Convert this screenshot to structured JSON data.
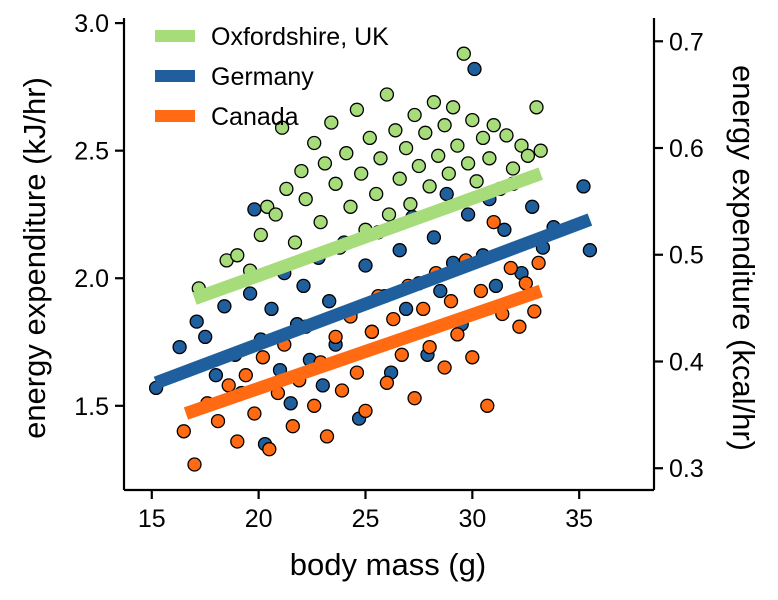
{
  "chart_data": {
    "type": "scatter",
    "xlabel": "body mass (g)",
    "ylabel": "energy expenditure (kJ/hr)",
    "ylabel_right": "energy expenditure (kcal/hr)",
    "xlim": [
      13.7,
      38.5
    ],
    "ylim": [
      1.17,
      3.02
    ],
    "ylim_right": [
      0.2796,
      0.7218
    ],
    "xticks": [
      15,
      20,
      25,
      30,
      35
    ],
    "yticks": [
      1.5,
      2.0,
      2.5,
      3.0
    ],
    "yticks_right": [
      0.3,
      0.4,
      0.5,
      0.6,
      0.7
    ],
    "xtick_labels": [
      "15",
      "20",
      "25",
      "30",
      "35"
    ],
    "ytick_labels": [
      "1.5",
      "2.0",
      "2.5",
      "3.0"
    ],
    "ytick_labels_right": [
      "0.3",
      "0.4",
      "0.5",
      "0.6",
      "0.7"
    ],
    "grid": false,
    "legend_position": "top-left",
    "draw_order": [
      "Germany",
      "Canada",
      "Oxfordshire, UK"
    ],
    "series": [
      {
        "name": "Oxfordshire, UK",
        "color": "#a6dc7a",
        "fit_line": {
          "x": [
            17.0,
            33.2
          ],
          "y": [
            1.92,
            2.41
          ]
        },
        "points": [
          [
            17.2,
            1.96
          ],
          [
            18.5,
            2.07
          ],
          [
            19.0,
            2.09
          ],
          [
            19.6,
            2.03
          ],
          [
            20.1,
            2.17
          ],
          [
            20.4,
            2.28
          ],
          [
            20.8,
            2.25
          ],
          [
            21.1,
            2.59
          ],
          [
            21.3,
            2.35
          ],
          [
            21.7,
            2.14
          ],
          [
            22.0,
            2.42
          ],
          [
            22.2,
            2.31
          ],
          [
            22.6,
            2.53
          ],
          [
            22.9,
            2.22
          ],
          [
            23.1,
            2.45
          ],
          [
            23.4,
            2.61
          ],
          [
            23.6,
            2.37
          ],
          [
            23.8,
            2.12
          ],
          [
            24.1,
            2.49
          ],
          [
            24.3,
            2.28
          ],
          [
            24.6,
            2.66
          ],
          [
            24.8,
            2.41
          ],
          [
            25.0,
            2.19
          ],
          [
            25.2,
            2.55
          ],
          [
            25.5,
            2.33
          ],
          [
            25.7,
            2.47
          ],
          [
            26.0,
            2.72
          ],
          [
            26.1,
            2.25
          ],
          [
            26.4,
            2.58
          ],
          [
            26.6,
            2.39
          ],
          [
            26.9,
            2.51
          ],
          [
            27.1,
            2.29
          ],
          [
            27.3,
            2.64
          ],
          [
            27.5,
            2.44
          ],
          [
            27.8,
            2.57
          ],
          [
            28.0,
            2.36
          ],
          [
            28.2,
            2.69
          ],
          [
            28.4,
            2.48
          ],
          [
            28.7,
            2.6
          ],
          [
            28.9,
            2.41
          ],
          [
            29.1,
            2.67
          ],
          [
            29.3,
            2.52
          ],
          [
            29.6,
            2.88
          ],
          [
            29.8,
            2.45
          ],
          [
            30.0,
            2.62
          ],
          [
            30.2,
            2.38
          ],
          [
            30.5,
            2.55
          ],
          [
            30.8,
            2.47
          ],
          [
            31.0,
            2.6
          ],
          [
            31.3,
            2.35
          ],
          [
            31.6,
            2.56
          ],
          [
            31.9,
            2.43
          ],
          [
            32.3,
            2.52
          ],
          [
            32.6,
            2.48
          ],
          [
            33.0,
            2.67
          ],
          [
            33.2,
            2.5
          ]
        ]
      },
      {
        "name": "Germany",
        "color": "#1f5f9e",
        "fit_line": {
          "x": [
            15.2,
            35.5
          ],
          "y": [
            1.59,
            2.23
          ]
        },
        "points": [
          [
            15.2,
            1.57
          ],
          [
            16.3,
            1.73
          ],
          [
            17.1,
            1.83
          ],
          [
            17.5,
            1.77
          ],
          [
            18.0,
            1.62
          ],
          [
            18.4,
            1.89
          ],
          [
            18.9,
            1.7
          ],
          [
            19.2,
            1.55
          ],
          [
            19.6,
            1.94
          ],
          [
            19.8,
            2.27
          ],
          [
            20.1,
            1.76
          ],
          [
            20.3,
            1.35
          ],
          [
            20.6,
            1.88
          ],
          [
            21.0,
            1.64
          ],
          [
            21.2,
            2.02
          ],
          [
            21.5,
            1.51
          ],
          [
            21.8,
            1.82
          ],
          [
            22.1,
            1.97
          ],
          [
            22.4,
            1.68
          ],
          [
            22.8,
            2.08
          ],
          [
            23.0,
            1.58
          ],
          [
            23.3,
            1.91
          ],
          [
            23.6,
            1.74
          ],
          [
            24.0,
            2.14
          ],
          [
            24.3,
            1.86
          ],
          [
            24.7,
            1.45
          ],
          [
            25.0,
            2.05
          ],
          [
            25.3,
            1.79
          ],
          [
            25.6,
            2.18
          ],
          [
            25.9,
            1.93
          ],
          [
            26.2,
            1.63
          ],
          [
            26.6,
            2.11
          ],
          [
            26.9,
            1.88
          ],
          [
            27.2,
            2.24
          ],
          [
            27.5,
            1.98
          ],
          [
            27.9,
            1.7
          ],
          [
            28.2,
            2.16
          ],
          [
            28.5,
            1.95
          ],
          [
            28.8,
            2.33
          ],
          [
            29.1,
            2.06
          ],
          [
            29.5,
            1.82
          ],
          [
            29.8,
            2.25
          ],
          [
            30.1,
            2.82
          ],
          [
            30.5,
            2.09
          ],
          [
            30.8,
            2.31
          ],
          [
            31.1,
            1.97
          ],
          [
            31.5,
            2.19
          ],
          [
            31.9,
            2.37
          ],
          [
            32.3,
            2.02
          ],
          [
            32.8,
            2.28
          ],
          [
            33.3,
            2.12
          ],
          [
            33.8,
            2.2
          ],
          [
            35.2,
            2.36
          ],
          [
            35.5,
            2.11
          ]
        ]
      },
      {
        "name": "Canada",
        "color": "#ff6a13",
        "fit_line": {
          "x": [
            16.6,
            33.2
          ],
          "y": [
            1.47,
            1.95
          ]
        },
        "points": [
          [
            16.5,
            1.4
          ],
          [
            17.0,
            1.27
          ],
          [
            17.6,
            1.51
          ],
          [
            18.1,
            1.44
          ],
          [
            18.6,
            1.58
          ],
          [
            19.0,
            1.36
          ],
          [
            19.4,
            1.62
          ],
          [
            19.8,
            1.47
          ],
          [
            20.2,
            1.69
          ],
          [
            20.5,
            1.33
          ],
          [
            20.9,
            1.55
          ],
          [
            21.2,
            1.74
          ],
          [
            21.6,
            1.42
          ],
          [
            21.9,
            1.6
          ],
          [
            22.2,
            1.81
          ],
          [
            22.6,
            1.5
          ],
          [
            22.9,
            1.67
          ],
          [
            23.2,
            1.38
          ],
          [
            23.6,
            1.77
          ],
          [
            23.9,
            1.56
          ],
          [
            24.3,
            1.85
          ],
          [
            24.6,
            1.63
          ],
          [
            25.0,
            1.48
          ],
          [
            25.3,
            1.79
          ],
          [
            25.6,
            1.93
          ],
          [
            26.0,
            1.59
          ],
          [
            26.3,
            1.84
          ],
          [
            26.7,
            1.7
          ],
          [
            27.0,
            1.97
          ],
          [
            27.3,
            1.53
          ],
          [
            27.7,
            1.88
          ],
          [
            28.0,
            1.73
          ],
          [
            28.3,
            2.02
          ],
          [
            28.7,
            1.65
          ],
          [
            29.0,
            1.91
          ],
          [
            29.3,
            1.78
          ],
          [
            29.7,
            2.07
          ],
          [
            30.0,
            1.69
          ],
          [
            30.4,
            1.95
          ],
          [
            30.7,
            1.5
          ],
          [
            31.0,
            2.22
          ],
          [
            31.4,
            1.86
          ],
          [
            31.8,
            2.04
          ],
          [
            32.2,
            1.81
          ],
          [
            32.5,
            1.98
          ],
          [
            32.9,
            1.87
          ],
          [
            33.1,
            2.06
          ]
        ]
      }
    ]
  }
}
